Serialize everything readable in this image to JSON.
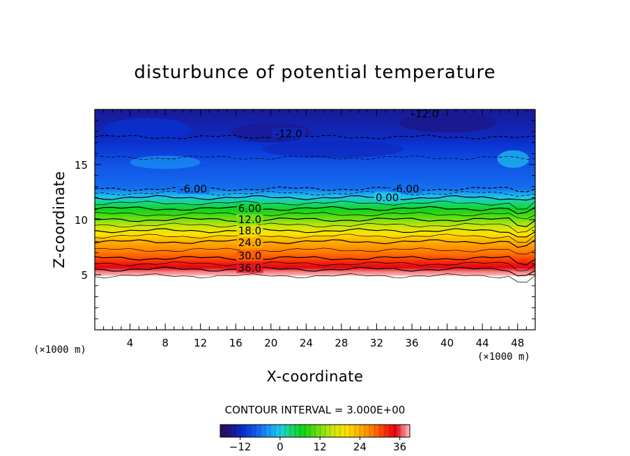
{
  "chart_data": {
    "type": "heatmap",
    "title": "disturbunce of potential temperature",
    "xlabel": "X-coordinate",
    "ylabel": "Z-coordinate",
    "x_unit": "(×1000 m)",
    "y_unit": "(×1000 m)",
    "xlim": [
      0,
      50
    ],
    "ylim": [
      0,
      20
    ],
    "x_ticks": [
      "4",
      "8",
      "12",
      "16",
      "20",
      "24",
      "28",
      "32",
      "36",
      "40",
      "44",
      "48"
    ],
    "y_ticks": [
      "5",
      "10",
      "15"
    ],
    "contour_interval_text": "CONTOUR INTERVAL = 3.000E+00",
    "colorbar": {
      "range": [
        -18,
        39
      ],
      "ticks": [
        "-12",
        "0",
        "12",
        "24",
        "36"
      ]
    },
    "contour_labels": [
      {
        "text": "-12.0",
        "x": 37.5,
        "z": 19.6
      },
      {
        "text": "-12.0",
        "x": 22.0,
        "z": 17.8
      },
      {
        "text": "-6.00",
        "x": 11.2,
        "z": 12.8
      },
      {
        "text": "-6.00",
        "x": 35.3,
        "z": 12.8
      },
      {
        "text": "0.00",
        "x": 33.2,
        "z": 12.0
      },
      {
        "text": "6.00",
        "x": 17.6,
        "z": 11.0
      },
      {
        "text": "12.0",
        "x": 17.6,
        "z": 10.0
      },
      {
        "text": "18.0",
        "x": 17.6,
        "z": 9.0
      },
      {
        "text": "24.0",
        "x": 17.6,
        "z": 7.9
      },
      {
        "text": "30.0",
        "x": 17.6,
        "z": 6.7
      },
      {
        "text": "36.0",
        "x": 17.6,
        "z": 5.6
      }
    ],
    "profile": [
      {
        "z": 4.9,
        "value": 39
      },
      {
        "z": 5.5,
        "value": 36
      },
      {
        "z": 6.5,
        "value": 30
      },
      {
        "z": 8.0,
        "value": 24
      },
      {
        "z": 9.0,
        "value": 18
      },
      {
        "z": 10.0,
        "value": 12
      },
      {
        "z": 11.0,
        "value": 6
      },
      {
        "z": 12.0,
        "value": 0
      },
      {
        "z": 12.8,
        "value": -6
      },
      {
        "z": 15.0,
        "value": -8
      },
      {
        "z": 17.5,
        "value": -12
      },
      {
        "z": 20.0,
        "value": -14
      }
    ],
    "lower_boundary_z": 4.9
  }
}
